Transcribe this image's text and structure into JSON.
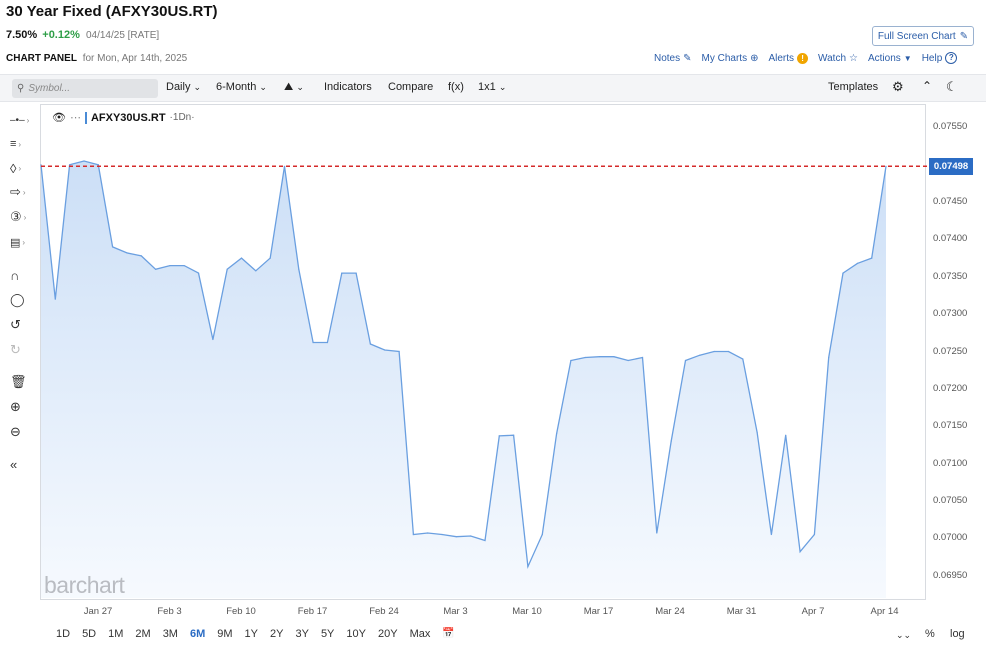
{
  "header": {
    "title": "30 Year Fixed (AFXY30US.RT)",
    "price": "7.50%",
    "change": "+0.12%",
    "date_meta": "04/14/25 [RATE]",
    "fullscreen_label": "Full Screen Chart",
    "panel_label": "CHART PANEL",
    "panel_date": "for Mon, Apr 14th, 2025"
  },
  "top_links": {
    "notes": "Notes",
    "my_charts": "My Charts",
    "alerts": "Alerts",
    "watch": "Watch",
    "actions": "Actions",
    "help": "Help"
  },
  "toolbar": {
    "symbol_placeholder": "Symbol...",
    "interval": "Daily",
    "period": "6-Month",
    "indicators": "Indicators",
    "compare": "Compare",
    "fx": "f(x)",
    "layout": "1x1",
    "templates": "Templates"
  },
  "legend": {
    "symbol": "AFXY30US.RT",
    "interval": "·1Dn·"
  },
  "watermark": "barchart",
  "last_value_label": "0.07498",
  "ranges": [
    "1D",
    "5D",
    "1M",
    "2M",
    "3M",
    "6M",
    "9M",
    "1Y",
    "2Y",
    "3Y",
    "5Y",
    "10Y",
    "20Y",
    "Max"
  ],
  "active_range": "6M",
  "bottom_right": {
    "percent": "%",
    "log": "log"
  },
  "colors": {
    "line": "#6a9fe0",
    "area_top": "#c9ddf6",
    "area_bottom": "#f5f9fe",
    "ref_line": "#d42a2a",
    "last_box": "#2b6cc4",
    "positive": "#2e9e47",
    "link": "#2b5da8"
  },
  "chart_data": {
    "type": "area",
    "series": [
      {
        "values": [
          0.075,
          0.0732,
          0.075,
          0.07505,
          0.075,
          0.0739,
          0.07382,
          0.07378,
          0.0736,
          0.07365,
          0.07365,
          0.07355,
          0.07266,
          0.0736,
          0.07375,
          0.07358,
          0.07375,
          0.07498,
          0.0736,
          0.07262,
          0.07262,
          0.07355,
          0.07355,
          0.0726,
          0.07252,
          0.0725,
          0.07005,
          0.07007,
          0.07005,
          0.07002,
          0.07003,
          0.06997,
          0.07137,
          0.07138,
          0.06962,
          0.07005,
          0.0714,
          0.07238,
          0.07242,
          0.07243,
          0.07243,
          0.07238,
          0.07242,
          0.07007,
          0.0713,
          0.07238,
          0.07245,
          0.0725,
          0.0725,
          0.0724,
          0.07142,
          0.07005,
          0.07138,
          0.06982,
          0.07005,
          0.07242,
          0.07355,
          0.07368,
          0.07375,
          0.07498
        ]
      }
    ],
    "x_ticks": [
      "Jan 27",
      "Feb 3",
      "Feb 10",
      "Feb 17",
      "Feb 24",
      "Mar 3",
      "Mar 10",
      "Mar 17",
      "Mar 24",
      "Mar 31",
      "Apr 7",
      "Apr 14"
    ],
    "y_ticks": [
      "0.07550",
      "0.07500",
      "0.07450",
      "0.07400",
      "0.07350",
      "0.07300",
      "0.07250",
      "0.07200",
      "0.07150",
      "0.07100",
      "0.07050",
      "0.07000",
      "0.06950"
    ],
    "ylim": [
      0.0692,
      0.0758
    ],
    "reference_line": 0.07498,
    "last_value": "0.07498"
  }
}
